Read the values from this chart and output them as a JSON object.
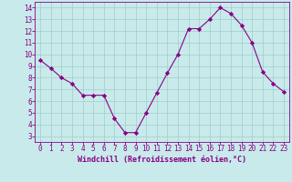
{
  "x": [
    0,
    1,
    2,
    3,
    4,
    5,
    6,
    7,
    8,
    9,
    10,
    11,
    12,
    13,
    14,
    15,
    16,
    17,
    18,
    19,
    20,
    21,
    22,
    23
  ],
  "y": [
    9.5,
    8.8,
    8.0,
    7.5,
    6.5,
    6.5,
    6.5,
    4.5,
    3.3,
    3.3,
    5.0,
    6.7,
    8.4,
    10.0,
    12.2,
    12.2,
    13.0,
    14.0,
    13.5,
    12.5,
    11.0,
    8.5,
    7.5,
    6.8
  ],
  "line_color": "#880088",
  "marker": "D",
  "marker_size": 2.2,
  "bg_color": "#c8eaea",
  "grid_color": "#a0cccc",
  "xlabel": "Windchill (Refroidissement éolien,°C)",
  "xlabel_color": "#880088",
  "tick_color": "#880088",
  "xlim": [
    -0.5,
    23.5
  ],
  "ylim": [
    2.5,
    14.5
  ],
  "yticks": [
    3,
    4,
    5,
    6,
    7,
    8,
    9,
    10,
    11,
    12,
    13,
    14
  ],
  "xticks": [
    0,
    1,
    2,
    3,
    4,
    5,
    6,
    7,
    8,
    9,
    10,
    11,
    12,
    13,
    14,
    15,
    16,
    17,
    18,
    19,
    20,
    21,
    22,
    23
  ],
  "tick_fontsize": 5.5,
  "xlabel_fontsize": 6.0
}
